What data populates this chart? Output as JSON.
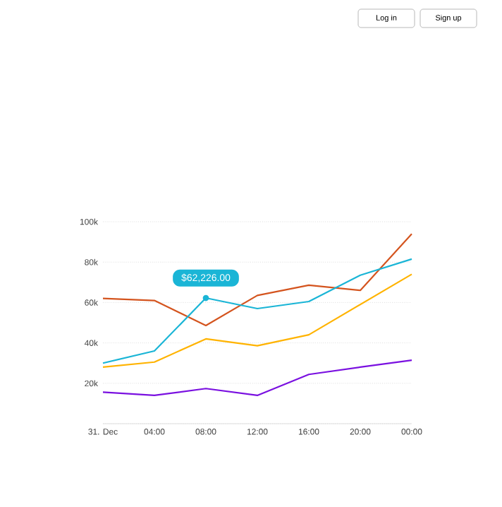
{
  "chart_data": {
    "type": "line",
    "categories": [
      "31. Dec",
      "04:00",
      "08:00",
      "12:00",
      "16:00",
      "20:00",
      "00:00"
    ],
    "series": [
      {
        "color": "#d4541e",
        "values": [
          62000,
          61000,
          48600,
          63500,
          68600,
          66000,
          94000
        ]
      },
      {
        "color": "#1ab5d6",
        "values": [
          30000,
          36000,
          62226,
          57000,
          60500,
          73500,
          81500
        ]
      },
      {
        "color": "#ffb300",
        "values": [
          28000,
          30500,
          42000,
          38600,
          44000,
          59000,
          74000
        ]
      },
      {
        "color": "#7a10e0",
        "values": [
          15600,
          14000,
          17400,
          14000,
          24400,
          28000,
          31400
        ]
      }
    ],
    "ylim": [
      0,
      100000
    ],
    "yticks": [
      {
        "value": 0,
        "label": null
      },
      {
        "value": 20000,
        "label": "20k"
      },
      {
        "value": 40000,
        "label": "40k"
      },
      {
        "value": 60000,
        "label": "60k"
      },
      {
        "value": 80000,
        "label": "80k"
      },
      {
        "value": 100000,
        "label": "100k"
      }
    ],
    "grid": "y",
    "marker": "none",
    "line_style": "solid",
    "annotations": [
      {
        "text": "$62,226.00",
        "x": "08:00",
        "y": 62226
      },
      "Log in",
      "Sign up"
    ]
  }
}
